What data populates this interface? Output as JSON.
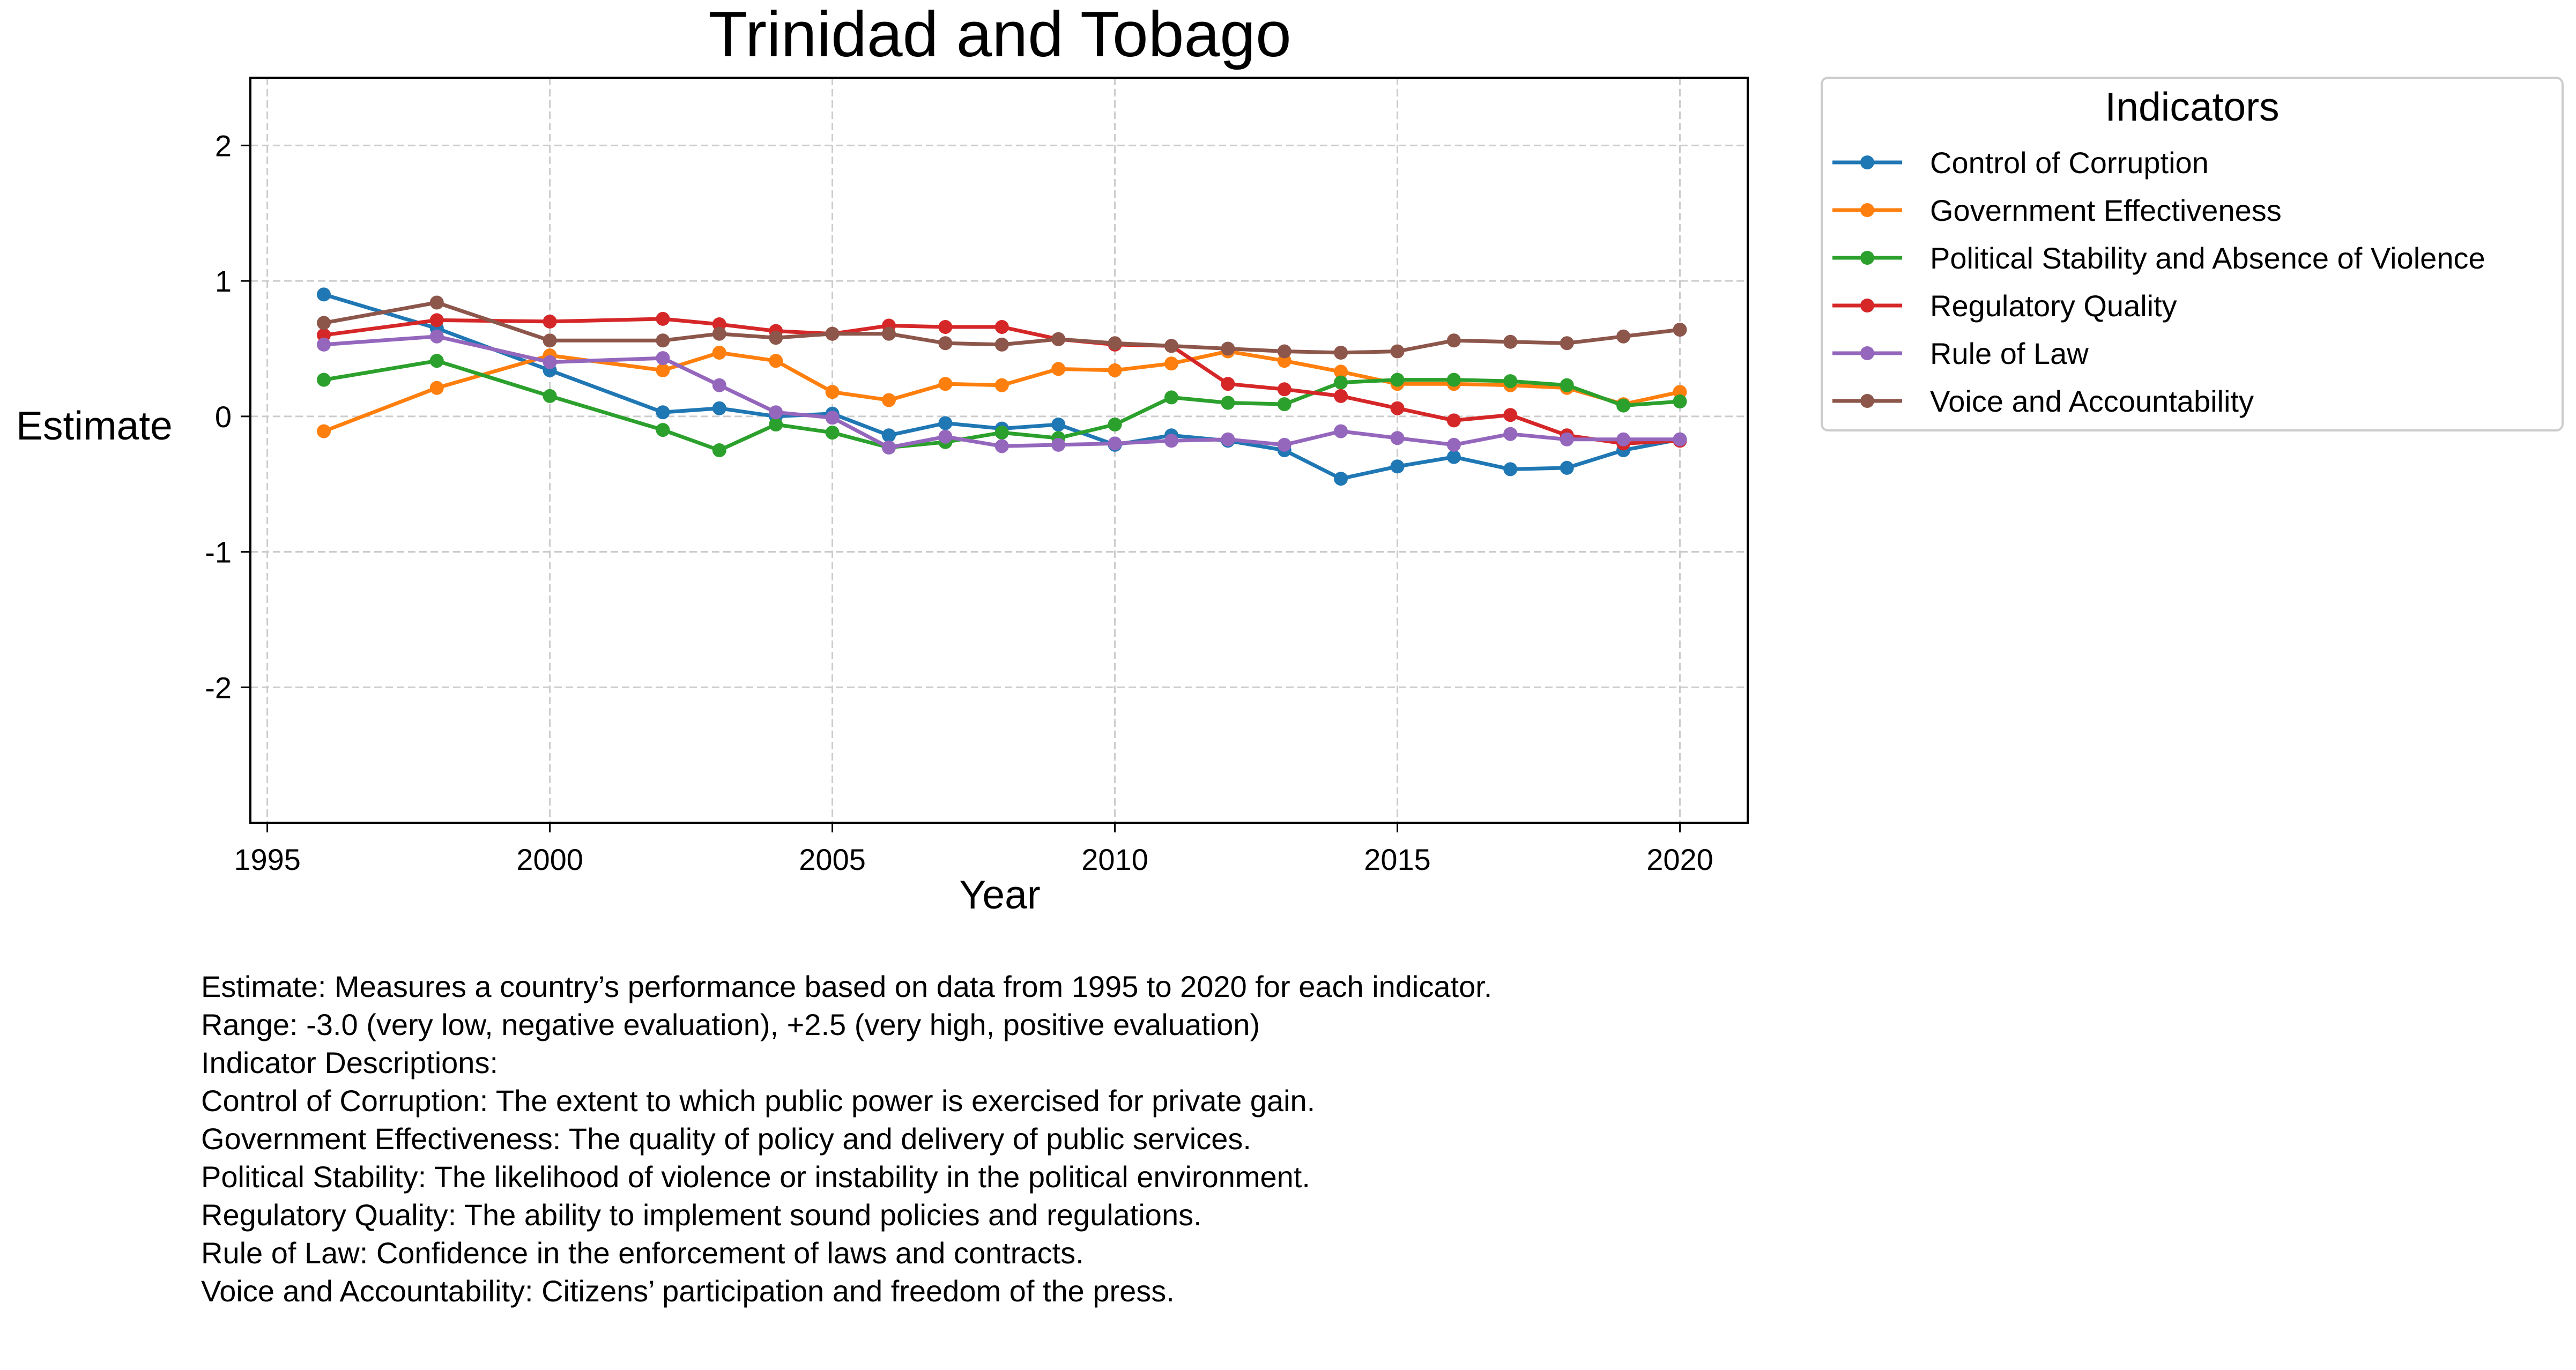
{
  "chart_data": {
    "type": "line",
    "title": "Trinidad and Tobago",
    "xlabel": "Year",
    "ylabel": "Estimate",
    "xlim": [
      1994.7,
      2021.2
    ],
    "ylim": [
      -3.0,
      2.5
    ],
    "x_ticks": [
      1995,
      2000,
      2005,
      2010,
      2015,
      2020
    ],
    "y_ticks": [
      2,
      1,
      0,
      -1,
      -2
    ],
    "x_tick_labels": [
      "1995",
      "2000",
      "2005",
      "2010",
      "2015",
      "2020"
    ],
    "y_tick_labels": [
      "2",
      "1",
      "0",
      "-1",
      "-2"
    ],
    "grid": true,
    "legend_title": "Indicators",
    "legend_position": "outside-right-top",
    "x": [
      1996,
      1998,
      2000,
      2002,
      2003,
      2004,
      2005,
      2006,
      2007,
      2008,
      2009,
      2010,
      2011,
      2012,
      2013,
      2014,
      2015,
      2016,
      2017,
      2018,
      2019,
      2020
    ],
    "series": [
      {
        "name": "Control of Corruption",
        "color": "#1f77b4",
        "values": [
          0.9,
          0.65,
          0.34,
          0.03,
          0.06,
          0.0,
          0.02,
          -0.14,
          -0.05,
          -0.09,
          -0.06,
          -0.21,
          -0.14,
          -0.18,
          -0.25,
          -0.46,
          -0.37,
          -0.3,
          -0.39,
          -0.38,
          -0.25,
          -0.17
        ]
      },
      {
        "name": "Government Effectiveness",
        "color": "#ff7f0e",
        "values": [
          -0.11,
          0.21,
          0.45,
          0.34,
          0.47,
          0.41,
          0.18,
          0.12,
          0.24,
          0.23,
          0.35,
          0.34,
          0.39,
          0.48,
          0.41,
          0.33,
          0.24,
          0.24,
          0.23,
          0.21,
          0.09,
          0.18
        ]
      },
      {
        "name": "Political Stability and Absence of Violence",
        "color": "#2ca02c",
        "values": [
          0.27,
          0.41,
          0.15,
          -0.1,
          -0.25,
          -0.06,
          -0.12,
          -0.23,
          -0.19,
          -0.12,
          -0.16,
          -0.06,
          0.14,
          0.1,
          0.09,
          0.25,
          0.27,
          0.27,
          0.26,
          0.23,
          0.08,
          0.11
        ]
      },
      {
        "name": "Regulatory Quality",
        "color": "#d62728",
        "values": [
          0.6,
          0.71,
          0.7,
          0.72,
          0.68,
          0.63,
          0.61,
          0.67,
          0.66,
          0.66,
          0.57,
          0.53,
          0.52,
          0.24,
          0.2,
          0.15,
          0.06,
          -0.03,
          0.01,
          -0.14,
          -0.2,
          -0.18
        ]
      },
      {
        "name": "Rule of Law",
        "color": "#9467bd",
        "values": [
          0.53,
          0.59,
          0.4,
          0.43,
          0.23,
          0.03,
          -0.01,
          -0.23,
          -0.15,
          -0.22,
          -0.21,
          -0.2,
          -0.18,
          -0.17,
          -0.21,
          -0.11,
          -0.16,
          -0.21,
          -0.13,
          -0.17,
          -0.17,
          -0.17
        ]
      },
      {
        "name": "Voice and Accountability",
        "color": "#8c564b",
        "values": [
          0.69,
          0.84,
          0.56,
          0.56,
          0.61,
          0.58,
          0.61,
          0.61,
          0.54,
          0.53,
          0.57,
          0.54,
          0.52,
          0.5,
          0.48,
          0.47,
          0.48,
          0.56,
          0.55,
          0.54,
          0.59,
          0.64
        ]
      }
    ]
  },
  "description": {
    "lines": [
      "Estimate: Measures a country’s performance based on data from 1995 to 2020 for each indicator.",
      "Range: -3.0 (very low, negative evaluation), +2.5 (very high, positive evaluation)",
      "",
      "Indicator Descriptions:",
      "Control of Corruption: The extent to which public power is exercised for private gain.",
      "Government Effectiveness: The quality of policy and delivery of public services.",
      "Political Stability: The likelihood of violence or instability in the political environment.",
      "Regulatory Quality: The ability to implement sound policies and regulations.",
      "Rule of Law: Confidence in the enforcement of laws and contracts.",
      "Voice and Accountability: Citizens’ participation and freedom of the press."
    ]
  }
}
